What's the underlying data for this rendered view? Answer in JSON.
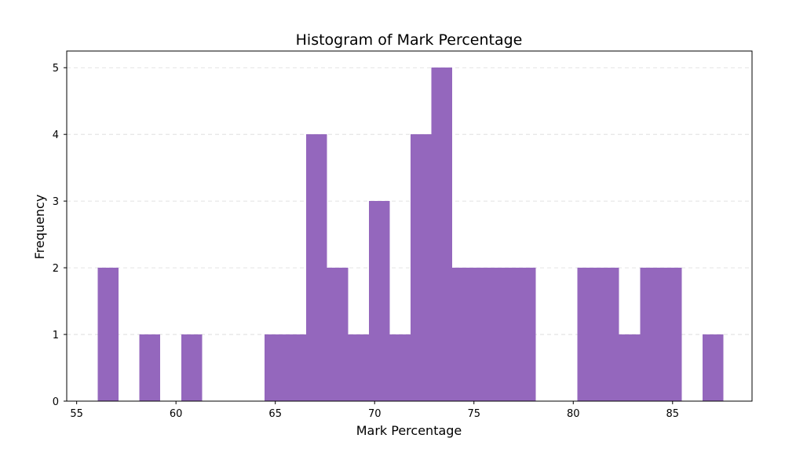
{
  "chart_data": {
    "type": "bar",
    "title": "Histogram of Mark Percentage",
    "xlabel": "Mark Percentage",
    "ylabel": "Frequency",
    "xlim": [
      54.5,
      89.0
    ],
    "ylim": [
      0,
      5.25
    ],
    "x_ticks": [
      55,
      60,
      65,
      70,
      75,
      80,
      85
    ],
    "y_ticks": [
      0,
      1,
      2,
      3,
      4,
      5
    ],
    "grid": "y-dashed",
    "bar_color": "#9467bd",
    "bins": [
      {
        "x0": 56.06,
        "x1": 57.11,
        "count": 2
      },
      {
        "x0": 57.11,
        "x1": 58.16,
        "count": 0
      },
      {
        "x0": 58.16,
        "x1": 59.21,
        "count": 1
      },
      {
        "x0": 59.21,
        "x1": 60.26,
        "count": 0
      },
      {
        "x0": 60.26,
        "x1": 61.31,
        "count": 1
      },
      {
        "x0": 61.31,
        "x1": 62.36,
        "count": 0
      },
      {
        "x0": 62.36,
        "x1": 63.41,
        "count": 0
      },
      {
        "x0": 63.41,
        "x1": 64.46,
        "count": 0
      },
      {
        "x0": 64.46,
        "x1": 65.51,
        "count": 1
      },
      {
        "x0": 65.51,
        "x1": 66.56,
        "count": 1
      },
      {
        "x0": 66.56,
        "x1": 67.61,
        "count": 4
      },
      {
        "x0": 67.61,
        "x1": 68.66,
        "count": 2
      },
      {
        "x0": 68.66,
        "x1": 69.71,
        "count": 1
      },
      {
        "x0": 69.71,
        "x1": 70.76,
        "count": 3
      },
      {
        "x0": 70.76,
        "x1": 71.81,
        "count": 1
      },
      {
        "x0": 71.81,
        "x1": 72.86,
        "count": 4
      },
      {
        "x0": 72.86,
        "x1": 73.91,
        "count": 5
      },
      {
        "x0": 73.91,
        "x1": 74.96,
        "count": 2
      },
      {
        "x0": 74.96,
        "x1": 76.01,
        "count": 2
      },
      {
        "x0": 76.01,
        "x1": 77.06,
        "count": 2
      },
      {
        "x0": 77.06,
        "x1": 78.11,
        "count": 2
      },
      {
        "x0": 78.11,
        "x1": 79.16,
        "count": 0
      },
      {
        "x0": 79.16,
        "x1": 80.21,
        "count": 0
      },
      {
        "x0": 80.21,
        "x1": 81.26,
        "count": 2
      },
      {
        "x0": 81.26,
        "x1": 82.31,
        "count": 2
      },
      {
        "x0": 82.31,
        "x1": 83.36,
        "count": 1
      },
      {
        "x0": 83.36,
        "x1": 84.41,
        "count": 2
      },
      {
        "x0": 84.41,
        "x1": 85.46,
        "count": 2
      },
      {
        "x0": 85.46,
        "x1": 86.51,
        "count": 0
      },
      {
        "x0": 86.51,
        "x1": 87.56,
        "count": 1
      }
    ]
  }
}
